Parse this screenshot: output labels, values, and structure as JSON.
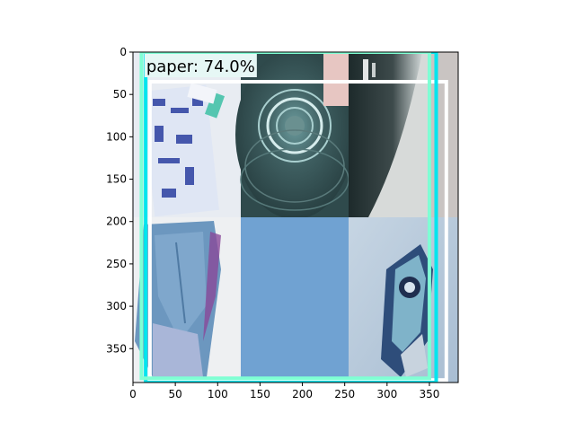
{
  "figure": {
    "x_ticks": [
      "0",
      "50",
      "100",
      "150",
      "200",
      "250",
      "300",
      "350"
    ],
    "y_ticks": [
      "0",
      "50",
      "100",
      "150",
      "200",
      "250",
      "300",
      "350"
    ],
    "x_range": [
      0,
      384
    ],
    "y_range": [
      390,
      0
    ]
  },
  "image": {
    "tiles": [
      {
        "name": "tile-wrapper-packets",
        "row": 0,
        "col": 0
      },
      {
        "name": "tile-cup-bottom",
        "row": 0,
        "col": 1
      },
      {
        "name": "tile-cup-side",
        "row": 0,
        "col": 2
      },
      {
        "name": "tile-blue-paper-crumpled",
        "row": 1,
        "col": 0
      },
      {
        "name": "tile-blue-paper-flat",
        "row": 1,
        "col": 1
      },
      {
        "name": "tile-foil-packet",
        "row": 1,
        "col": 2
      }
    ],
    "colors": {
      "wrapper_bg": "#e8ecf2",
      "cup_bg": "#2f4a4c",
      "cup_side_bg": "#d7dad9",
      "paper_bg": "#eef0f2",
      "paper_blue": "#6c97bf",
      "flat_blue": "#74a6d6",
      "foil_bg": "#b7c9dc"
    }
  },
  "detections": [
    {
      "label": "paper: 74.0%",
      "color": "#ffffff",
      "x1": 20,
      "y1": 35,
      "x2": 370,
      "y2": 387
    },
    {
      "color": "#00e5ee",
      "x1": 15,
      "y1": 0,
      "x2": 358,
      "y2": 390
    },
    {
      "color": "#7fffd4",
      "x1": 10,
      "y1": 0,
      "x2": 350,
      "y2": 385
    }
  ]
}
